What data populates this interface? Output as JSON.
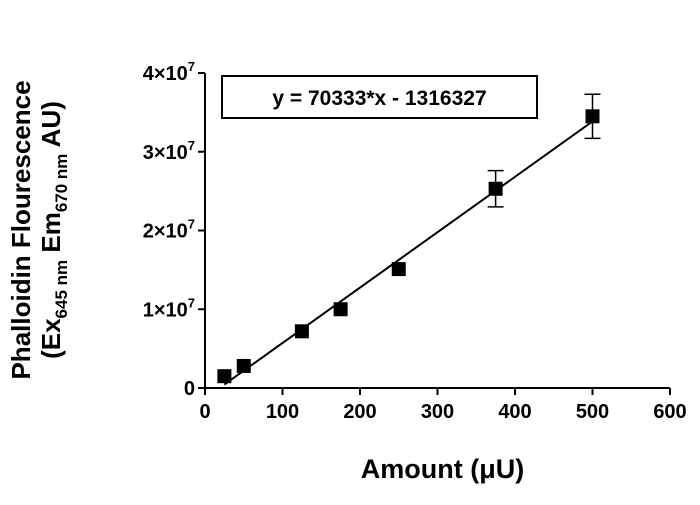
{
  "chart_data": {
    "type": "scatter",
    "xlabel": "Amount (μU)",
    "ylabel": "Phalloidin Flourescence",
    "ylabel_line2": [
      "(Ex",
      "645 nm",
      " Em",
      "670 nm",
      " AU)"
    ],
    "annotation": "y = 70333*x - 1316327",
    "trendline": {
      "slope": 70333,
      "intercept": -1316327,
      "x": [
        25,
        500
      ]
    },
    "series": [
      {
        "color": "#000000",
        "x": [
          25,
          50,
          125,
          175,
          250,
          375,
          500
        ],
        "values": [
          1500000,
          2800000,
          7200000,
          10000000,
          15100000,
          25300000,
          34500000
        ],
        "errors": [
          null,
          null,
          null,
          null,
          null,
          2300000,
          2800000
        ]
      }
    ],
    "xlim": [
      0,
      600
    ],
    "xticks": [
      0,
      100,
      200,
      300,
      400,
      500,
      600
    ],
    "ylim": [
      0,
      40000000
    ],
    "yticks": [
      0,
      {
        "value": 10000000,
        "label": "1×10",
        "exponent": "7"
      },
      {
        "value": 20000000,
        "label": "2×10",
        "exponent": "7"
      },
      {
        "value": 30000000,
        "label": "3×10",
        "exponent": "7"
      },
      {
        "value": 40000000,
        "label": "4×10",
        "exponent": "7"
      }
    ]
  }
}
